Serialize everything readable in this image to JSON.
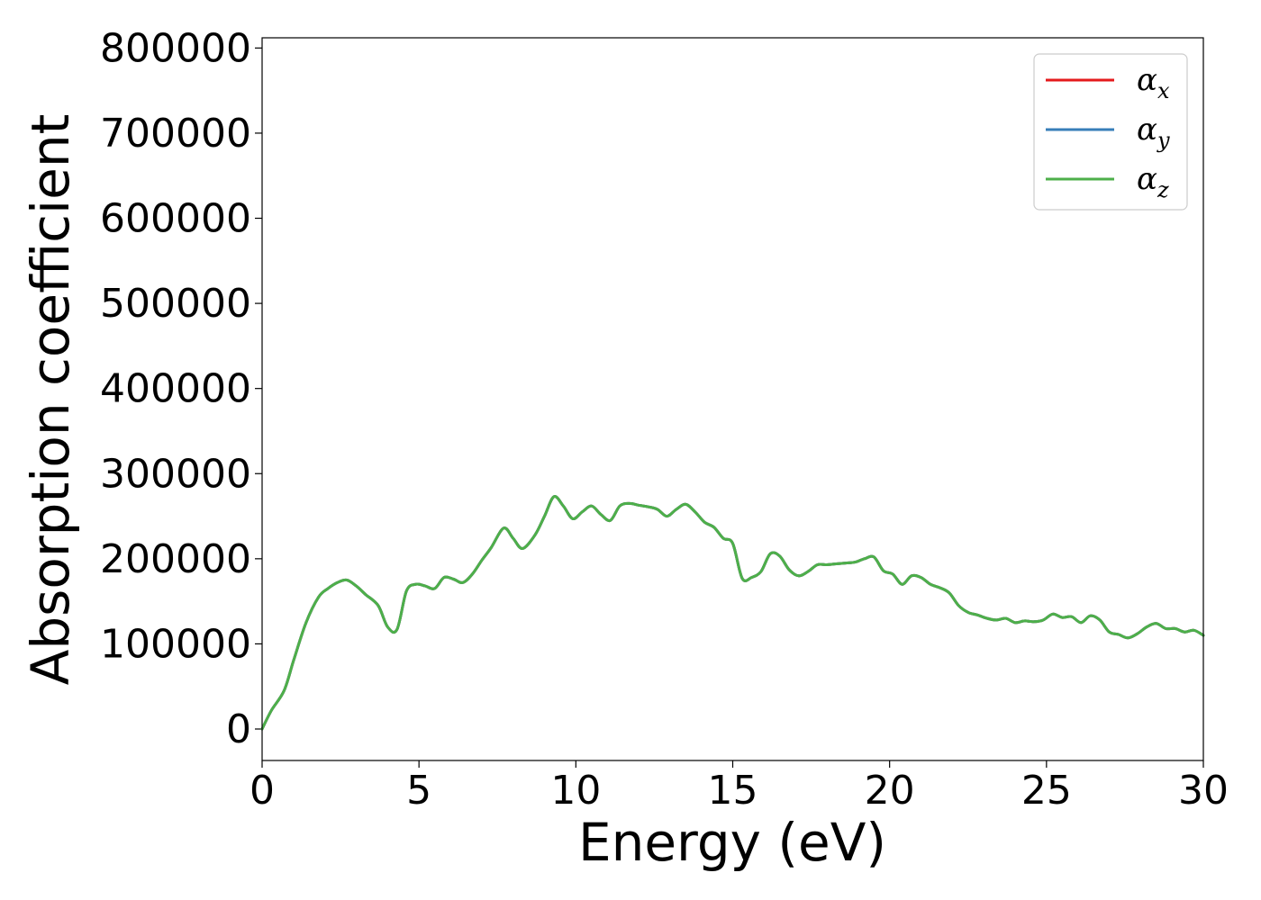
{
  "chart_data": {
    "type": "line",
    "xlabel": "Energy (eV)",
    "ylabel": "Absorption coefficient",
    "xlim": [
      0,
      30
    ],
    "ylim": [
      -37000,
      812000
    ],
    "xticks": [
      0,
      5,
      10,
      15,
      20,
      25,
      30
    ],
    "xtick_labels": [
      "0",
      "5",
      "10",
      "15",
      "20",
      "25",
      "30"
    ],
    "yticks": [
      0,
      100000,
      200000,
      300000,
      400000,
      500000,
      600000,
      700000,
      800000
    ],
    "ytick_labels": [
      "0",
      "100000",
      "200000",
      "300000",
      "400000",
      "500000",
      "600000",
      "700000",
      "800000"
    ],
    "grid": false,
    "legend_position": "top-right",
    "x": [
      0,
      0.3,
      0.7,
      1.0,
      1.4,
      1.8,
      2.1,
      2.4,
      2.7,
      3.0,
      3.3,
      3.7,
      4.0,
      4.3,
      4.6,
      4.9,
      5.2,
      5.5,
      5.8,
      6.1,
      6.4,
      6.7,
      7.0,
      7.3,
      7.7,
      8.0,
      8.3,
      8.7,
      9.0,
      9.3,
      9.6,
      9.9,
      10.2,
      10.5,
      10.8,
      11.1,
      11.4,
      11.7,
      12.0,
      12.3,
      12.6,
      12.9,
      13.2,
      13.5,
      13.8,
      14.1,
      14.4,
      14.7,
      15.0,
      15.3,
      15.6,
      15.9,
      16.2,
      16.5,
      16.8,
      17.1,
      17.4,
      17.7,
      18.0,
      18.3,
      18.6,
      18.9,
      19.2,
      19.5,
      19.8,
      20.1,
      20.4,
      20.7,
      21.0,
      21.3,
      21.6,
      21.9,
      22.2,
      22.5,
      22.8,
      23.1,
      23.4,
      23.7,
      24.0,
      24.3,
      24.6,
      24.9,
      25.2,
      25.5,
      25.8,
      26.1,
      26.4,
      26.7,
      27.0,
      27.3,
      27.6,
      27.9,
      28.2,
      28.5,
      28.8,
      29.1,
      29.4,
      29.7,
      30.0
    ],
    "series": [
      {
        "name": "α_x",
        "color": "#e41a1c",
        "values": [
          0,
          22000,
          45000,
          80000,
          125000,
          155000,
          165000,
          172000,
          175000,
          168000,
          158000,
          145000,
          120000,
          117000,
          162000,
          170000,
          168000,
          165000,
          178000,
          176000,
          172000,
          182000,
          198000,
          213000,
          236000,
          224000,
          212000,
          228000,
          250000,
          273000,
          262000,
          247000,
          255000,
          262000,
          252000,
          245000,
          262000,
          265000,
          263000,
          261000,
          258000,
          250000,
          258000,
          264000,
          255000,
          243000,
          237000,
          224000,
          218000,
          177000,
          178000,
          185000,
          206000,
          203000,
          187000,
          180000,
          185000,
          193000,
          193000,
          194000,
          195000,
          196000,
          200000,
          202000,
          186000,
          182000,
          170000,
          180000,
          178000,
          170000,
          166000,
          160000,
          145000,
          137000,
          134000,
          130000,
          128000,
          130000,
          125000,
          127000,
          126000,
          128000,
          135000,
          131000,
          132000,
          125000,
          133000,
          128000,
          114000,
          111000,
          107000,
          112000,
          120000,
          124000,
          118000,
          118000,
          114000,
          116000,
          110000
        ]
      },
      {
        "name": "α_y",
        "color": "#377eb8",
        "values": [
          0,
          22000,
          45000,
          80000,
          125000,
          155000,
          165000,
          172000,
          175000,
          168000,
          158000,
          145000,
          120000,
          117000,
          162000,
          170000,
          168000,
          165000,
          178000,
          176000,
          172000,
          182000,
          198000,
          213000,
          236000,
          224000,
          212000,
          228000,
          250000,
          273000,
          262000,
          247000,
          255000,
          262000,
          252000,
          245000,
          262000,
          265000,
          263000,
          261000,
          258000,
          250000,
          258000,
          264000,
          255000,
          243000,
          237000,
          224000,
          218000,
          177000,
          178000,
          185000,
          206000,
          203000,
          187000,
          180000,
          185000,
          193000,
          193000,
          194000,
          195000,
          196000,
          200000,
          202000,
          186000,
          182000,
          170000,
          180000,
          178000,
          170000,
          166000,
          160000,
          145000,
          137000,
          134000,
          130000,
          128000,
          130000,
          125000,
          127000,
          126000,
          128000,
          135000,
          131000,
          132000,
          125000,
          133000,
          128000,
          114000,
          111000,
          107000,
          112000,
          120000,
          124000,
          118000,
          118000,
          114000,
          116000,
          110000
        ]
      },
      {
        "name": "α_z",
        "color": "#4daf4a",
        "values": [
          0,
          22000,
          45000,
          80000,
          125000,
          155000,
          165000,
          172000,
          175000,
          168000,
          158000,
          145000,
          120000,
          117000,
          162000,
          170000,
          168000,
          165000,
          178000,
          176000,
          172000,
          182000,
          198000,
          213000,
          236000,
          224000,
          212000,
          228000,
          250000,
          273000,
          262000,
          247000,
          255000,
          262000,
          252000,
          245000,
          262000,
          265000,
          263000,
          261000,
          258000,
          250000,
          258000,
          264000,
          255000,
          243000,
          237000,
          224000,
          218000,
          177000,
          178000,
          185000,
          206000,
          203000,
          187000,
          180000,
          185000,
          193000,
          193000,
          194000,
          195000,
          196000,
          200000,
          202000,
          186000,
          182000,
          170000,
          180000,
          178000,
          170000,
          166000,
          160000,
          145000,
          137000,
          134000,
          130000,
          128000,
          130000,
          125000,
          127000,
          126000,
          128000,
          135000,
          131000,
          132000,
          125000,
          133000,
          128000,
          114000,
          111000,
          107000,
          112000,
          120000,
          124000,
          118000,
          118000,
          114000,
          116000,
          110000
        ]
      }
    ],
    "legend": [
      {
        "symbol": "α",
        "sub": "x",
        "color": "#e41a1c"
      },
      {
        "symbol": "α",
        "sub": "y",
        "color": "#377eb8"
      },
      {
        "symbol": "α",
        "sub": "z",
        "color": "#4daf4a"
      }
    ]
  }
}
